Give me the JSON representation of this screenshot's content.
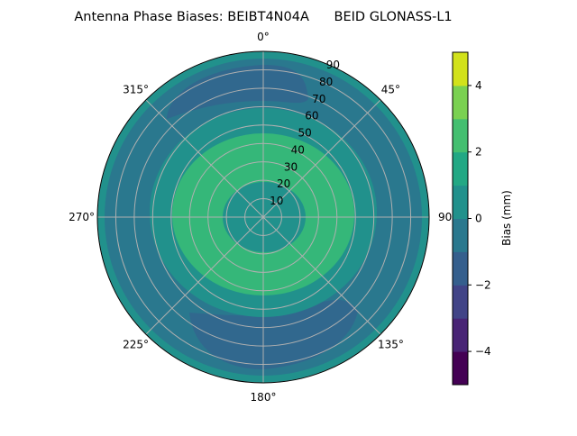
{
  "chart_data": {
    "type": "heatmap",
    "subtype": "polar-contour",
    "title": "Antenna Phase Biases: BEIBT4N04A      BEID GLONASS-L1",
    "angular_ticks": [
      "0°",
      "45°",
      "90°",
      "135°",
      "180°",
      "225°",
      "270°",
      "315°"
    ],
    "radial_ticks": [
      "10",
      "20",
      "30",
      "40",
      "50",
      "60",
      "70",
      "80",
      "90"
    ],
    "radial_range": [
      0,
      90
    ],
    "grid": true,
    "colorbar": {
      "label": "Bias (mm)",
      "range": [
        -5,
        5
      ],
      "levels": [
        -5,
        -4,
        -3,
        -2,
        -1,
        0,
        1,
        2,
        3,
        4,
        5
      ],
      "ticks": [
        "4",
        "2",
        "0",
        "−2",
        "−4"
      ],
      "tick_values": [
        4,
        2,
        0,
        -2,
        -4
      ],
      "colors": [
        "#440154",
        "#482475",
        "#414487",
        "#355f8d",
        "#2a788e",
        "#21918c",
        "#22a884",
        "#44bf70",
        "#7ad151",
        "#d2e21b"
      ]
    },
    "regions": [
      {
        "range": [
          0,
          1
        ],
        "zenith": "0-12 and 45-55 and 85-90"
      },
      {
        "range": [
          1,
          2
        ],
        "zenith": "12-45"
      },
      {
        "range": [
          -1,
          0
        ],
        "zenith": "55-85"
      },
      {
        "range": [
          -2,
          -1
        ],
        "zenith": "65-82 near north and south"
      }
    ]
  }
}
